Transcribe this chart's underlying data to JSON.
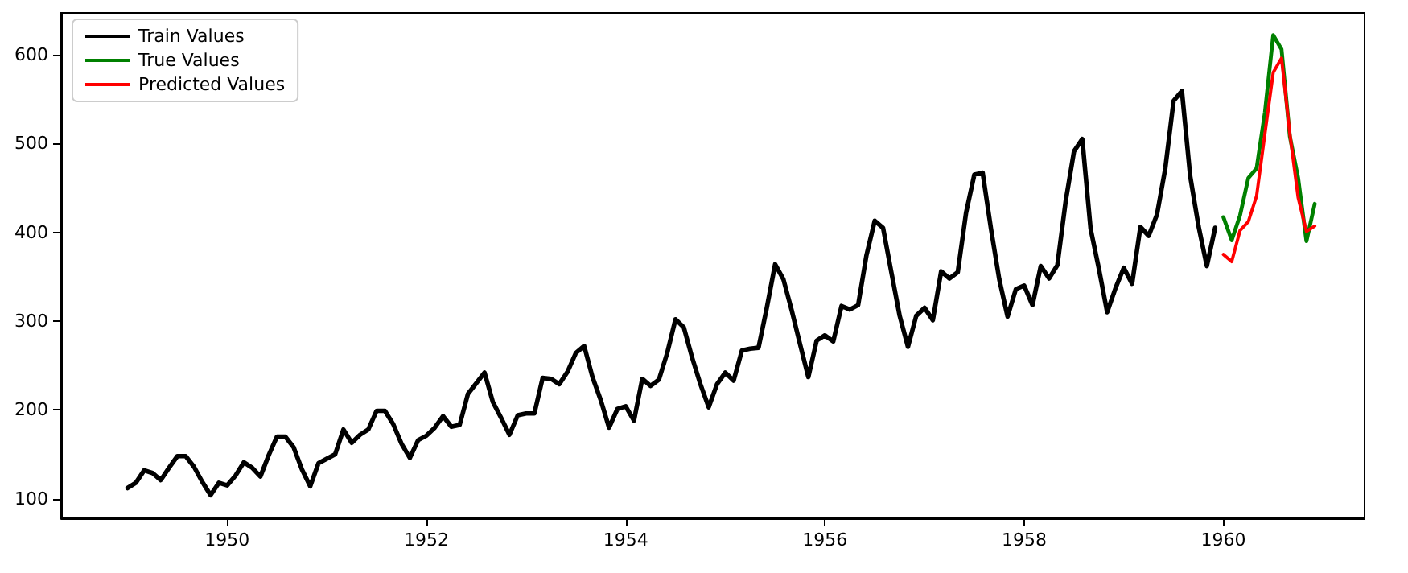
{
  "chart_data": {
    "type": "line",
    "legend": "top left",
    "grid": false,
    "line_style": "solid",
    "marker": "none",
    "xlim": [
      "1948-05",
      "1961-06"
    ],
    "xticks": [
      "1950",
      "1952",
      "1954",
      "1956",
      "1958",
      "1960"
    ],
    "ylim": [
      78,
      647
    ],
    "yticks": [
      100,
      200,
      300,
      400,
      500,
      600
    ],
    "series": [
      {
        "name": "Train Values",
        "color": "#000000",
        "x": [
          "1949-01",
          "1949-02",
          "1949-03",
          "1949-04",
          "1949-05",
          "1949-06",
          "1949-07",
          "1949-08",
          "1949-09",
          "1949-10",
          "1949-11",
          "1949-12",
          "1950-01",
          "1950-02",
          "1950-03",
          "1950-04",
          "1950-05",
          "1950-06",
          "1950-07",
          "1950-08",
          "1950-09",
          "1950-10",
          "1950-11",
          "1950-12",
          "1951-01",
          "1951-02",
          "1951-03",
          "1951-04",
          "1951-05",
          "1951-06",
          "1951-07",
          "1951-08",
          "1951-09",
          "1951-10",
          "1951-11",
          "1951-12",
          "1952-01",
          "1952-02",
          "1952-03",
          "1952-04",
          "1952-05",
          "1952-06",
          "1952-07",
          "1952-08",
          "1952-09",
          "1952-10",
          "1952-11",
          "1952-12",
          "1953-01",
          "1953-02",
          "1953-03",
          "1953-04",
          "1953-05",
          "1953-06",
          "1953-07",
          "1953-08",
          "1953-09",
          "1953-10",
          "1953-11",
          "1953-12",
          "1954-01",
          "1954-02",
          "1954-03",
          "1954-04",
          "1954-05",
          "1954-06",
          "1954-07",
          "1954-08",
          "1954-09",
          "1954-10",
          "1954-11",
          "1954-12",
          "1955-01",
          "1955-02",
          "1955-03",
          "1955-04",
          "1955-05",
          "1955-06",
          "1955-07",
          "1955-08",
          "1955-09",
          "1955-10",
          "1955-11",
          "1955-12",
          "1956-01",
          "1956-02",
          "1956-03",
          "1956-04",
          "1956-05",
          "1956-06",
          "1956-07",
          "1956-08",
          "1956-09",
          "1956-10",
          "1956-11",
          "1956-12",
          "1957-01",
          "1957-02",
          "1957-03",
          "1957-04",
          "1957-05",
          "1957-06",
          "1957-07",
          "1957-08",
          "1957-09",
          "1957-10",
          "1957-11",
          "1957-12",
          "1958-01",
          "1958-02",
          "1958-03",
          "1958-04",
          "1958-05",
          "1958-06",
          "1958-07",
          "1958-08",
          "1958-09",
          "1958-10",
          "1958-11",
          "1958-12",
          "1959-01",
          "1959-02",
          "1959-03",
          "1959-04",
          "1959-05",
          "1959-06",
          "1959-07",
          "1959-08",
          "1959-09",
          "1959-10",
          "1959-11",
          "1959-12"
        ],
        "values": [
          112,
          118,
          132,
          129,
          121,
          135,
          148,
          148,
          136,
          119,
          104,
          118,
          115,
          126,
          141,
          135,
          125,
          149,
          170,
          170,
          158,
          133,
          114,
          140,
          145,
          150,
          178,
          163,
          172,
          178,
          199,
          199,
          184,
          162,
          146,
          166,
          171,
          180,
          193,
          181,
          183,
          218,
          230,
          242,
          209,
          191,
          172,
          194,
          196,
          196,
          236,
          235,
          229,
          243,
          264,
          272,
          237,
          211,
          180,
          201,
          204,
          188,
          235,
          227,
          234,
          264,
          302,
          293,
          259,
          229,
          203,
          229,
          242,
          233,
          267,
          269,
          270,
          315,
          364,
          347,
          312,
          274,
          237,
          278,
          284,
          277,
          317,
          313,
          318,
          374,
          413,
          405,
          355,
          306,
          271,
          306,
          315,
          301,
          356,
          348,
          355,
          422,
          465,
          467,
          404,
          347,
          305,
          336,
          340,
          318,
          362,
          348,
          363,
          435,
          491,
          505,
          404,
          359,
          310,
          337,
          360,
          342,
          406,
          396,
          420,
          472,
          548,
          559,
          463,
          407,
          362,
          405
        ]
      },
      {
        "name": "True Values",
        "color": "#008000",
        "x": [
          "1960-01",
          "1960-02",
          "1960-03",
          "1960-04",
          "1960-05",
          "1960-06",
          "1960-07",
          "1960-08",
          "1960-09",
          "1960-10",
          "1960-11",
          "1960-12"
        ],
        "values": [
          417,
          391,
          419,
          461,
          472,
          535,
          622,
          606,
          508,
          461,
          390,
          432
        ]
      },
      {
        "name": "Predicted Values",
        "color": "#ff0000",
        "x": [
          "1960-01",
          "1960-02",
          "1960-03",
          "1960-04",
          "1960-05",
          "1960-06",
          "1960-07",
          "1960-08",
          "1960-09",
          "1960-10",
          "1960-11",
          "1960-12"
        ],
        "values": [
          375,
          367,
          402,
          412,
          441,
          511,
          580,
          596,
          511,
          439,
          401,
          407
        ]
      }
    ]
  }
}
